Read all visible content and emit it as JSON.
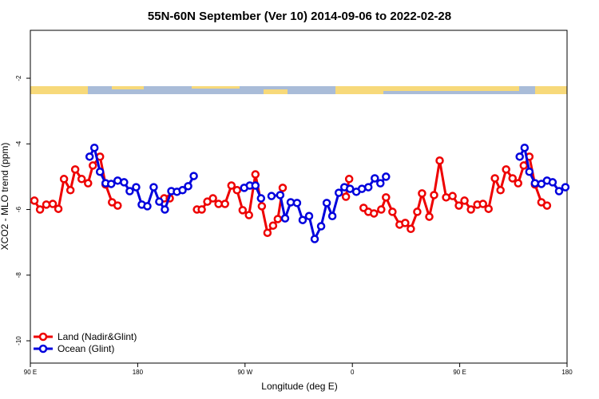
{
  "chart_data": {
    "type": "line",
    "title": "55N-60N September (Ver 10)   2014-09-06 to 2022-02-28",
    "x_label": "Longitude (deg E)",
    "y_label": "XCO2 - MLO trend (ppm)",
    "xlim": [
      90,
      540
    ],
    "xticks": [
      {
        "value": 90,
        "label": "90 E"
      },
      {
        "value": 180,
        "label": "180"
      },
      {
        "value": 270,
        "label": "90 W"
      },
      {
        "value": 360,
        "label": "0"
      },
      {
        "value": 450,
        "label": "90 E"
      },
      {
        "value": 540,
        "label": "180"
      }
    ],
    "ylim": [
      -10.68,
      -0.54
    ],
    "yticks": [
      -10,
      -8,
      -6,
      -4,
      -2
    ],
    "legend": "bottom-left",
    "series": [
      {
        "name": "Land (Nadir&Glint)",
        "color": "#ee0000",
        "x": [
          93.4,
          98.1,
          103.4,
          108.8,
          113.5,
          118.2,
          123.6,
          127.6,
          133.0,
          138.4,
          142.4,
          148.4,
          153.1,
          158.5,
          163.2,
          null,
          202.2,
          206.9,
          null,
          229.7,
          233.7,
          238.4,
          243.1,
          247.8,
          253.2,
          258.6,
          263.3,
          268.0,
          273.3,
          278.7,
          284.1,
          288.8,
          293.5,
          297.5,
          301.6,
          null,
          354.6,
          357.3,
          null,
          369.4,
          373.4,
          378.1,
          384.2,
          388.2,
          393.6,
          399.6,
          404.3,
          409.0,
          414.4,
          418.4,
          424.5,
          428.5,
          433.2,
          438.6,
          444.0,
          449.3,
          454.0,
          459.4,
          464.8,
          469.5,
          474.2,
          479.5,
          484.2,
          488.9,
          494.3,
          499.0,
          503.7,
          508.4,
          513.1,
          518.5,
          523.2
        ],
        "values": [
          -5.73,
          -6.0,
          -5.85,
          -5.83,
          -5.98,
          -5.07,
          -5.41,
          -4.78,
          -5.07,
          -5.2,
          -4.66,
          -4.39,
          -5.24,
          -5.78,
          -5.88,
          null,
          -5.66,
          -5.66,
          null,
          -6.0,
          -6.0,
          -5.76,
          -5.66,
          -5.83,
          -5.83,
          -5.27,
          -5.41,
          -6.02,
          -6.17,
          -4.93,
          -5.9,
          -6.71,
          -6.49,
          -6.29,
          -5.34,
          null,
          -5.61,
          -5.07,
          null,
          -5.95,
          -6.07,
          -6.12,
          -6.0,
          -5.63,
          -6.07,
          -6.46,
          -6.41,
          -6.59,
          -6.07,
          -5.51,
          -6.22,
          -5.56,
          -4.51,
          -5.63,
          -5.59,
          -5.88,
          -5.73,
          -6.0,
          -5.85,
          -5.83,
          -5.98,
          -5.05,
          -5.41,
          -4.78,
          -5.05,
          -5.2,
          -4.66,
          -4.39,
          -5.24,
          -5.78,
          -5.88
        ]
      },
      {
        "name": "Ocean (Glint)",
        "color": "#0000dd",
        "x": [
          139.7,
          143.7,
          148.4,
          153.1,
          157.8,
          163.2,
          168.6,
          173.3,
          178.7,
          183.4,
          188.1,
          193.4,
          198.1,
          202.8,
          208.2,
          212.9,
          217.6,
          222.3,
          227.0,
          null,
          269.3,
          274.0,
          278.7,
          283.4,
          null,
          292.2,
          299.5,
          303.6,
          308.3,
          313.6,
          318.3,
          323.7,
          328.4,
          333.8,
          338.5,
          343.2,
          348.6,
          353.3,
          358.0,
          363.3,
          368.0,
          373.4,
          378.8,
          383.5,
          388.2,
          null,
          500.3,
          504.4,
          508.4,
          513.1,
          518.5,
          523.2,
          527.9,
          533.3,
          538.6
        ],
        "values": [
          -4.39,
          -4.12,
          -4.85,
          -5.2,
          -5.22,
          -5.12,
          -5.17,
          -5.44,
          -5.32,
          -5.85,
          -5.9,
          -5.32,
          -5.76,
          -6.0,
          -5.44,
          -5.46,
          -5.41,
          -5.29,
          -4.98,
          null,
          -5.34,
          -5.27,
          -5.27,
          -5.66,
          null,
          -5.59,
          -5.56,
          -6.27,
          -5.78,
          -5.8,
          -6.32,
          -6.2,
          -6.9,
          -6.51,
          -5.8,
          -6.2,
          -5.49,
          -5.32,
          -5.37,
          -5.46,
          -5.37,
          -5.32,
          -5.05,
          -5.2,
          -5.0,
          null,
          -4.39,
          -4.12,
          -4.85,
          -5.2,
          -5.22,
          -5.12,
          -5.17,
          -5.44,
          -5.32
        ]
      }
    ]
  }
}
